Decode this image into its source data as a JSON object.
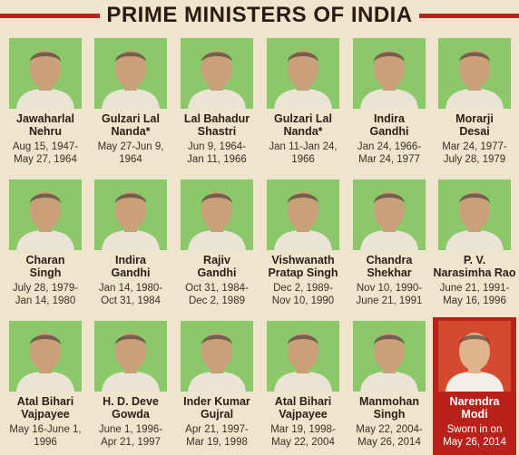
{
  "header": {
    "title": "PRIME MINISTERS OF INDIA"
  },
  "ministers": [
    {
      "name_lines": [
        "Jawaharlal",
        "Nehru"
      ],
      "date_lines": [
        "Aug 15, 1947-",
        "May 27, 1964"
      ]
    },
    {
      "name_lines": [
        "Gulzari Lal",
        "Nanda*"
      ],
      "date_lines": [
        "May 27-Jun 9,",
        "1964"
      ]
    },
    {
      "name_lines": [
        "Lal Bahadur",
        "Shastri"
      ],
      "date_lines": [
        "Jun 9, 1964-",
        "Jan 11, 1966"
      ]
    },
    {
      "name_lines": [
        "Gulzari Lal",
        "Nanda*"
      ],
      "date_lines": [
        "Jan 11-Jan 24,",
        "1966"
      ]
    },
    {
      "name_lines": [
        "Indira",
        "Gandhi"
      ],
      "date_lines": [
        "Jan 24, 1966-",
        "Mar 24, 1977"
      ]
    },
    {
      "name_lines": [
        "Morarji",
        "Desai"
      ],
      "date_lines": [
        "Mar 24, 1977-",
        "July 28, 1979"
      ]
    },
    {
      "name_lines": [
        "Charan",
        "Singh"
      ],
      "date_lines": [
        "July 28, 1979-",
        "Jan 14, 1980"
      ]
    },
    {
      "name_lines": [
        "Indira",
        "Gandhi"
      ],
      "date_lines": [
        "Jan 14, 1980-",
        "Oct 31, 1984"
      ]
    },
    {
      "name_lines": [
        "Rajiv",
        "Gandhi"
      ],
      "date_lines": [
        "Oct 31, 1984-",
        "Dec 2, 1989"
      ]
    },
    {
      "name_lines": [
        "Vishwanath",
        "Pratap Singh"
      ],
      "date_lines": [
        "Dec 2, 1989-",
        "Nov 10, 1990"
      ]
    },
    {
      "name_lines": [
        "Chandra",
        "Shekhar"
      ],
      "date_lines": [
        "Nov 10, 1990-",
        "June 21, 1991"
      ]
    },
    {
      "name_lines": [
        "P. V.",
        "Narasimha Rao"
      ],
      "date_lines": [
        "June 21, 1991-",
        "May 16, 1996"
      ]
    },
    {
      "name_lines": [
        "Atal Bihari",
        "Vajpayee"
      ],
      "date_lines": [
        "May 16-June 1,",
        "1996"
      ]
    },
    {
      "name_lines": [
        "H. D. Deve",
        "Gowda"
      ],
      "date_lines": [
        "June 1, 1996-",
        "Apr 21, 1997"
      ]
    },
    {
      "name_lines": [
        "Inder Kumar",
        "Gujral"
      ],
      "date_lines": [
        "Apr 21, 1997-",
        "Mar 19, 1998"
      ]
    },
    {
      "name_lines": [
        "Atal Bihari",
        "Vajpayee"
      ],
      "date_lines": [
        "Mar 19, 1998-",
        "May 22, 2004"
      ]
    },
    {
      "name_lines": [
        "Manmohan",
        "Singh"
      ],
      "date_lines": [
        "May 22, 2004-",
        "May 26, 2014"
      ]
    },
    {
      "name_lines": [
        "Narendra",
        "Modi"
      ],
      "date_lines": [
        "Sworn in on",
        "May 26, 2014"
      ],
      "highlight": true
    }
  ]
}
